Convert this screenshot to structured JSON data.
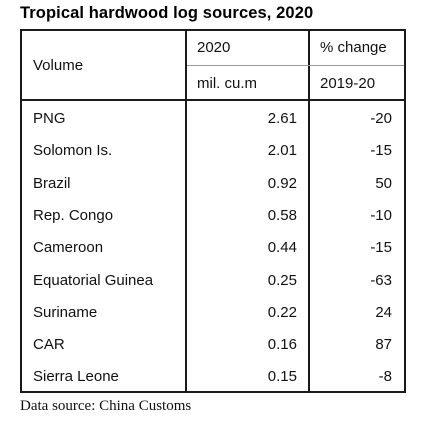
{
  "title": "Tropical hardwood log sources, 2020",
  "header": {
    "row_label": "Volume",
    "col1_top": "2020",
    "col1_bottom": "mil. cu.m",
    "col2_top": "% change",
    "col2_bottom": "2019-20"
  },
  "source": "Data source: China Customs",
  "chart_data": {
    "type": "table",
    "title": "Tropical hardwood log sources, 2020",
    "columns": [
      "Volume",
      "2020 mil. cu.m",
      "% change 2019-20"
    ],
    "rows": [
      {
        "name": "PNG",
        "volume": "2.61",
        "change": "-20"
      },
      {
        "name": "Solomon Is.",
        "volume": "2.01",
        "change": "-15"
      },
      {
        "name": "Brazil",
        "volume": "0.92",
        "change": "50"
      },
      {
        "name": "Rep. Congo",
        "volume": "0.58",
        "change": "-10"
      },
      {
        "name": "Cameroon",
        "volume": "0.44",
        "change": "-15"
      },
      {
        "name": "Equatorial Guinea",
        "volume": "0.25",
        "change": "-63"
      },
      {
        "name": "Suriname",
        "volume": "0.22",
        "change": "24"
      },
      {
        "name": "CAR",
        "volume": "0.16",
        "change": "87"
      },
      {
        "name": "Sierra Leone",
        "volume": "0.15",
        "change": "-8"
      }
    ]
  }
}
